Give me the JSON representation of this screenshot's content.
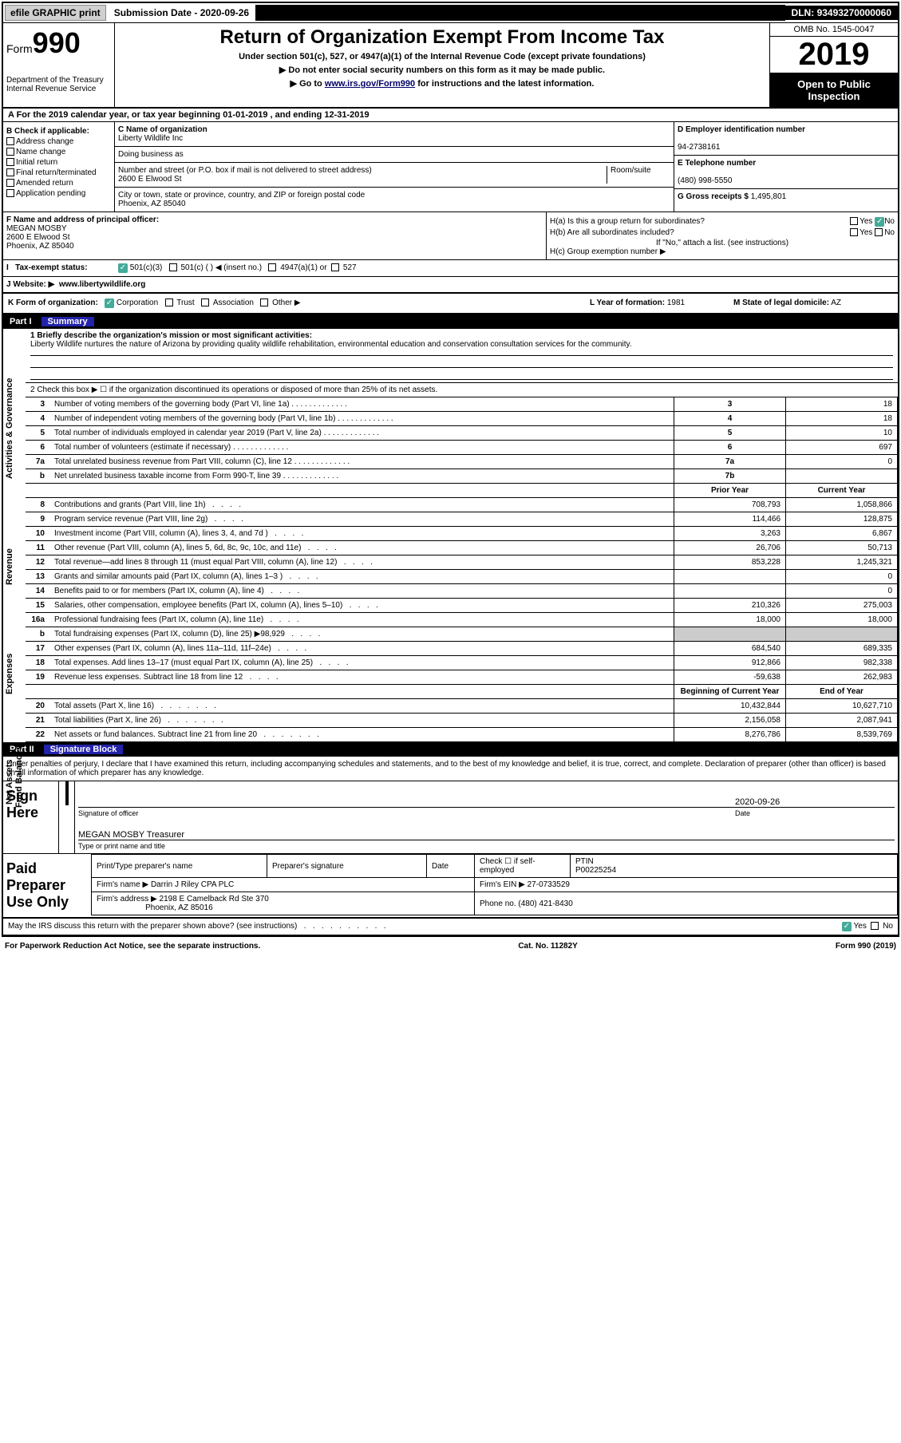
{
  "topbar": {
    "efile_label": "efile GRAPHIC print",
    "submission_date_label": "Submission Date",
    "submission_date": "2020-09-26",
    "dln_label": "DLN:",
    "dln": "93493270000060"
  },
  "header": {
    "form_word": "Form",
    "form_number": "990",
    "dept": "Department of the Treasury\nInternal Revenue Service",
    "main_title": "Return of Organization Exempt From Income Tax",
    "subtitle": "Under section 501(c), 527, or 4947(a)(1) of the Internal Revenue Code (except private foundations)",
    "note1": "▶ Do not enter social security numbers on this form as it may be made public.",
    "note2_pre": "▶ Go to ",
    "note2_link": "www.irs.gov/Form990",
    "note2_post": " for instructions and the latest information.",
    "omb": "OMB No. 1545-0047",
    "year": "2019",
    "open_public": "Open to Public Inspection"
  },
  "line_a": "A For the 2019 calendar year, or tax year beginning 01-01-2019     , and ending 12-31-2019",
  "section_b": {
    "header": "B Check if applicable:",
    "opts": [
      "Address change",
      "Name change",
      "Initial return",
      "Final return/terminated",
      "Amended return",
      "Application pending"
    ]
  },
  "section_c": {
    "name_label": "C Name of organization",
    "name": "Liberty Wildlife Inc",
    "dba_label": "Doing business as",
    "street_label": "Number and street (or P.O. box if mail is not delivered to street address)",
    "room_label": "Room/suite",
    "street": "2600 E Elwood St",
    "city_label": "City or town, state or province, country, and ZIP or foreign postal code",
    "city": "Phoenix, AZ  85040"
  },
  "section_d": {
    "ein_label": "D Employer identification number",
    "ein": "94-2738161",
    "phone_label": "E Telephone number",
    "phone": "(480) 998-5550",
    "gross_label": "G Gross receipts $",
    "gross": "1,495,801"
  },
  "section_f": {
    "label": "F Name and address of principal officer:",
    "name": "MEGAN MOSBY",
    "street": "2600 E Elwood St",
    "city": "Phoenix, AZ  85040"
  },
  "section_h": {
    "ha_label": "H(a)  Is this a group return for subordinates?",
    "hb_label": "H(b)  Are all subordinates included?",
    "hb_note": "If \"No,\" attach a list. (see instructions)",
    "hc_label": "H(c)  Group exemption number ▶",
    "yes": "Yes",
    "no": "No"
  },
  "line_i": {
    "label": "Tax-exempt status:",
    "opt1": "501(c)(3)",
    "opt2": "501(c) (   ) ◀ (insert no.)",
    "opt3": "4947(a)(1) or",
    "opt4": "527"
  },
  "line_j": {
    "label": "J    Website: ▶",
    "value": "www.libertywildlife.org"
  },
  "line_k": {
    "label": "K Form of organization:",
    "corp": "Corporation",
    "trust": "Trust",
    "assoc": "Association",
    "other": "Other ▶",
    "l_label": "L Year of formation:",
    "l_val": "1981",
    "m_label": "M State of legal domicile:",
    "m_val": "AZ"
  },
  "part1": {
    "label": "Part I",
    "title": "Summary",
    "vert_labels": [
      "Activities & Governance",
      "Revenue",
      "Expenses",
      "Net Assets or Fund Balances"
    ],
    "line1_label": "1  Briefly describe the organization's mission or most significant activities:",
    "line1_text": "Liberty Wildlife nurtures the nature of Arizona by providing quality wildlife rehabilitation, environmental education and conservation consultation services for the community.",
    "line2": "2   Check this box ▶ ☐  if the organization discontinued its operations or disposed of more than 25% of its net assets.",
    "rows_gov": [
      {
        "n": "3",
        "desc": "Number of voting members of the governing body (Part VI, line 1a)",
        "box": "3",
        "val": "18"
      },
      {
        "n": "4",
        "desc": "Number of independent voting members of the governing body (Part VI, line 1b)",
        "box": "4",
        "val": "18"
      },
      {
        "n": "5",
        "desc": "Total number of individuals employed in calendar year 2019 (Part V, line 2a)",
        "box": "5",
        "val": "10"
      },
      {
        "n": "6",
        "desc": "Total number of volunteers (estimate if necessary)",
        "box": "6",
        "val": "697"
      },
      {
        "n": "7a",
        "desc": "Total unrelated business revenue from Part VIII, column (C), line 12",
        "box": "7a",
        "val": "0"
      },
      {
        "n": "b",
        "desc": "Net unrelated business taxable income from Form 990-T, line 39",
        "box": "7b",
        "val": ""
      }
    ],
    "py_header": "Prior Year",
    "cy_header": "Current Year",
    "rows_rev": [
      {
        "n": "8",
        "desc": "Contributions and grants (Part VIII, line 1h)",
        "py": "708,793",
        "cy": "1,058,866"
      },
      {
        "n": "9",
        "desc": "Program service revenue (Part VIII, line 2g)",
        "py": "114,466",
        "cy": "128,875"
      },
      {
        "n": "10",
        "desc": "Investment income (Part VIII, column (A), lines 3, 4, and 7d )",
        "py": "3,263",
        "cy": "6,867"
      },
      {
        "n": "11",
        "desc": "Other revenue (Part VIII, column (A), lines 5, 6d, 8c, 9c, 10c, and 11e)",
        "py": "26,706",
        "cy": "50,713"
      },
      {
        "n": "12",
        "desc": "Total revenue—add lines 8 through 11 (must equal Part VIII, column (A), line 12)",
        "py": "853,228",
        "cy": "1,245,321"
      }
    ],
    "rows_exp": [
      {
        "n": "13",
        "desc": "Grants and similar amounts paid (Part IX, column (A), lines 1–3 )",
        "py": "",
        "cy": "0"
      },
      {
        "n": "14",
        "desc": "Benefits paid to or for members (Part IX, column (A), line 4)",
        "py": "",
        "cy": "0"
      },
      {
        "n": "15",
        "desc": "Salaries, other compensation, employee benefits (Part IX, column (A), lines 5–10)",
        "py": "210,326",
        "cy": "275,003"
      },
      {
        "n": "16a",
        "desc": "Professional fundraising fees (Part IX, column (A), line 11e)",
        "py": "18,000",
        "cy": "18,000"
      },
      {
        "n": "b",
        "desc": "Total fundraising expenses (Part IX, column (D), line 25) ▶98,929",
        "py": "SHADED",
        "cy": "SHADED"
      },
      {
        "n": "17",
        "desc": "Other expenses (Part IX, column (A), lines 11a–11d, 11f–24e)",
        "py": "684,540",
        "cy": "689,335"
      },
      {
        "n": "18",
        "desc": "Total expenses. Add lines 13–17 (must equal Part IX, column (A), line 25)",
        "py": "912,866",
        "cy": "982,338"
      },
      {
        "n": "19",
        "desc": "Revenue less expenses. Subtract line 18 from line 12",
        "py": "-59,638",
        "cy": "262,983"
      }
    ],
    "boy_header": "Beginning of Current Year",
    "eoy_header": "End of Year",
    "rows_net": [
      {
        "n": "20",
        "desc": "Total assets (Part X, line 16)",
        "py": "10,432,844",
        "cy": "10,627,710"
      },
      {
        "n": "21",
        "desc": "Total liabilities (Part X, line 26)",
        "py": "2,156,058",
        "cy": "2,087,941"
      },
      {
        "n": "22",
        "desc": "Net assets or fund balances. Subtract line 21 from line 20",
        "py": "8,276,786",
        "cy": "8,539,769"
      }
    ]
  },
  "part2": {
    "label": "Part II",
    "title": "Signature Block",
    "text": "Under penalties of perjury, I declare that I have examined this return, including accompanying schedules and statements, and to the best of my knowledge and belief, it is true, correct, and complete. Declaration of preparer (other than officer) is based on all information of which preparer has any knowledge."
  },
  "sign": {
    "label": "Sign Here",
    "sig_caption": "Signature of officer",
    "date": "2020-09-26",
    "date_caption": "Date",
    "name": "MEGAN MOSBY Treasurer",
    "name_caption": "Type or print name and title"
  },
  "preparer": {
    "label": "Paid Preparer Use Only",
    "name_label": "Print/Type preparer's name",
    "sig_label": "Preparer's signature",
    "date_label": "Date",
    "check_label": "Check ☐ if self-employed",
    "ptin_label": "PTIN",
    "ptin": "P00225254",
    "firm_name_label": "Firm's name    ▶",
    "firm_name": "Darrin J Riley CPA PLC",
    "firm_ein_label": "Firm's EIN ▶",
    "firm_ein": "27-0733529",
    "firm_addr_label": "Firm's address ▶",
    "firm_addr1": "2198 E Camelback Rd Ste 370",
    "firm_addr2": "Phoenix, AZ  85016",
    "phone_label": "Phone no.",
    "phone": "(480) 421-8430"
  },
  "bottom": {
    "discuss": "May the IRS discuss this return with the preparer shown above? (see instructions)",
    "yes": "Yes",
    "no": "No"
  },
  "footer": {
    "left": "For Paperwork Reduction Act Notice, see the separate instructions.",
    "mid": "Cat. No. 11282Y",
    "right": "Form 990 (2019)"
  }
}
